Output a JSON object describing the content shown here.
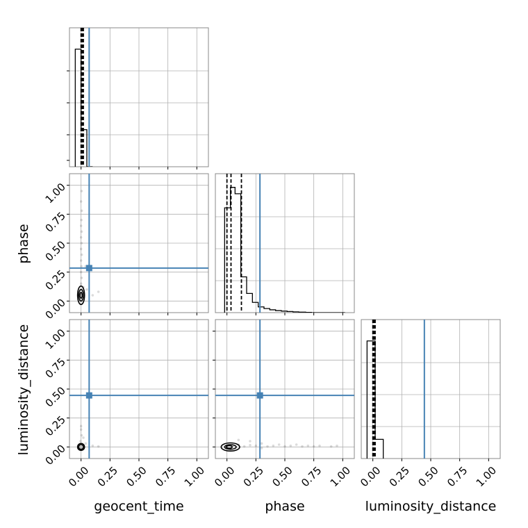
{
  "chart_data": {
    "type": "scatter",
    "subtype": "corner",
    "parameters": [
      "geocent_time",
      "phase",
      "luminosity_distance"
    ],
    "axis_range": [
      -0.1,
      1.1
    ],
    "tick_values": [
      0.0,
      0.25,
      0.5,
      0.75,
      1.0
    ],
    "tick_labels": [
      "0.00",
      "0.25",
      "0.50",
      "0.75",
      "1.00"
    ],
    "grid": true,
    "truths": {
      "geocent_time": 0.07,
      "phase": 0.285,
      "luminosity_distance": 0.445
    },
    "histograms": {
      "geocent_time": {
        "edges": [
          -0.05,
          0.0,
          0.05,
          0.1
        ],
        "heights": [
          0.92,
          0.29,
          0.0
        ],
        "quantiles": [
          0.0,
          0.01,
          0.02
        ]
      },
      "phase": {
        "edges": [
          -0.02,
          0.03,
          0.07,
          0.12,
          0.17,
          0.22,
          0.27,
          0.32,
          0.37,
          0.42,
          0.47,
          0.52,
          0.57,
          0.62,
          0.68,
          0.73,
          1.02
        ],
        "heights": [
          0.82,
          0.98,
          0.93,
          0.28,
          0.15,
          0.08,
          0.045,
          0.032,
          0.022,
          0.016,
          0.012,
          0.009,
          0.006,
          0.004,
          0.002,
          0.0
        ],
        "quantiles": [
          0.0,
          0.035,
          0.125
        ]
      },
      "luminosity_distance": {
        "edges": [
          -0.05,
          0.02,
          0.09
        ],
        "heights": [
          0.92,
          0.15
        ],
        "quantiles": [
          0.0,
          0.01,
          0.02
        ]
      }
    },
    "pairs": [
      {
        "x": "geocent_time",
        "y": "phase",
        "truth": [
          0.07,
          0.285
        ],
        "samples": [
          [
            0.0,
            0.02
          ],
          [
            -0.005,
            0.06
          ],
          [
            0.01,
            0.1
          ],
          [
            0.0,
            0.15
          ],
          [
            0.005,
            0.2
          ],
          [
            0.0,
            0.25
          ],
          [
            0.003,
            0.3
          ],
          [
            0.0,
            0.35
          ],
          [
            0.006,
            0.4
          ],
          [
            0.0,
            0.45
          ],
          [
            0.004,
            0.5
          ],
          [
            0.0,
            0.55
          ],
          [
            0.005,
            0.6
          ],
          [
            0.0,
            0.65
          ],
          [
            0.003,
            0.7
          ],
          [
            0.006,
            0.78
          ],
          [
            0.0,
            0.86
          ],
          [
            0.005,
            0.95
          ],
          [
            0.02,
            0.12
          ],
          [
            0.04,
            0.3
          ],
          [
            0.05,
            0.1
          ],
          [
            0.1,
            0.05
          ],
          [
            0.15,
            0.08
          ]
        ],
        "contours": [
          {
            "cx": 0.0,
            "cy": 0.05,
            "rx": 0.03,
            "ry": 0.08
          },
          {
            "cx": 0.0,
            "cy": 0.05,
            "rx": 0.02,
            "ry": 0.05
          },
          {
            "cx": 0.0,
            "cy": 0.05,
            "rx": 0.01,
            "ry": 0.025
          }
        ]
      },
      {
        "x": "geocent_time",
        "y": "luminosity_distance",
        "truth": [
          0.07,
          0.445
        ],
        "samples": [
          [
            0.0,
            0.0
          ],
          [
            0.01,
            0.02
          ],
          [
            -0.005,
            0.05
          ],
          [
            0.005,
            0.1
          ],
          [
            0.0,
            0.15
          ],
          [
            0.02,
            0.08
          ],
          [
            0.04,
            0.03
          ],
          [
            0.1,
            0.01
          ],
          [
            0.15,
            0.005
          ],
          [
            0.0,
            0.18
          ]
        ],
        "contours": [
          {
            "cx": 0.0,
            "cy": 0.0,
            "rx": 0.03,
            "ry": 0.03
          },
          {
            "cx": 0.0,
            "cy": 0.0,
            "rx": 0.02,
            "ry": 0.02
          }
        ]
      },
      {
        "x": "phase",
        "y": "luminosity_distance",
        "truth": [
          0.285,
          0.445
        ],
        "samples": [
          [
            0.0,
            0.0
          ],
          [
            0.05,
            0.01
          ],
          [
            0.1,
            0.02
          ],
          [
            0.15,
            0.005
          ],
          [
            0.2,
            0.015
          ],
          [
            0.25,
            0.01
          ],
          [
            0.3,
            0.03
          ],
          [
            0.35,
            0.005
          ],
          [
            0.4,
            0.01
          ],
          [
            0.45,
            0.02
          ],
          [
            0.5,
            0.005
          ],
          [
            0.55,
            0.01
          ],
          [
            0.6,
            0.02
          ],
          [
            0.65,
            0.005
          ],
          [
            0.7,
            0.01
          ],
          [
            0.75,
            0.005
          ],
          [
            0.8,
            0.01
          ],
          [
            0.9,
            0.005
          ],
          [
            0.95,
            0.01
          ],
          [
            0.2,
            0.05
          ],
          [
            0.1,
            0.06
          ],
          [
            0.3,
            -0.01
          ]
        ],
        "contours": [
          {
            "cx": 0.03,
            "cy": 0.0,
            "rx": 0.08,
            "ry": 0.035
          },
          {
            "cx": 0.03,
            "cy": 0.0,
            "rx": 0.05,
            "ry": 0.02
          },
          {
            "cx": 0.02,
            "cy": 0.0,
            "rx": 0.025,
            "ry": 0.012
          }
        ]
      }
    ]
  }
}
